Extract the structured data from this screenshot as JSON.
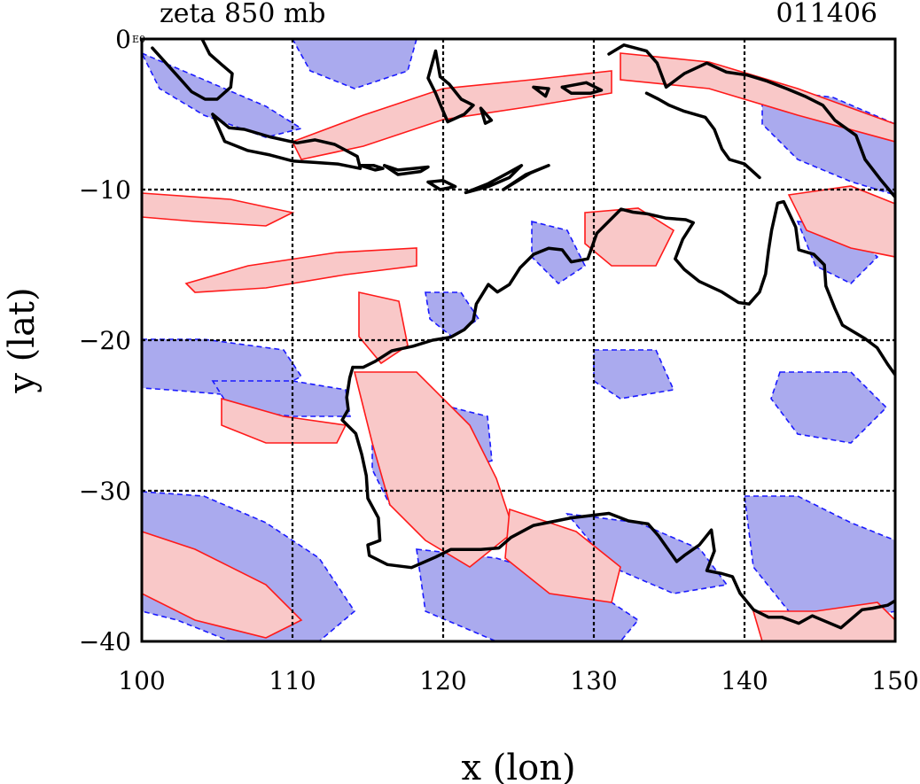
{
  "chart_data": {
    "type": "contour-map",
    "title_left": "zeta 850 mb",
    "title_right": "011406",
    "xlabel": "x (lon)",
    "ylabel": "y (lat)",
    "xlim": [
      100,
      150
    ],
    "ylim": [
      -40,
      0
    ],
    "x_ticks": [
      100,
      110,
      120,
      130,
      140,
      150
    ],
    "y_ticks": [
      0,
      -10,
      -20,
      -30,
      -40
    ],
    "x_tick_labels": [
      "100",
      "110",
      "120",
      "130",
      "140",
      "150"
    ],
    "y_tick_labels": [
      "0",
      "−10",
      "−20",
      "−30",
      "−40"
    ],
    "y_top_suffix": "E0",
    "grid": true,
    "grid_style": "dashed",
    "colors": {
      "positive_fill": "#f9c8c8",
      "positive_line": "#ff1a1a",
      "negative_fill": "#aaaaee",
      "negative_line": "#1a1aff",
      "coastline": "#000000"
    },
    "coastline": [
      [
        [
          114.0,
          -21.8
        ],
        [
          113.8,
          -22.5
        ],
        [
          113.6,
          -23.8
        ],
        [
          113.7,
          -24.6
        ],
        [
          113.3,
          -25.3
        ],
        [
          114.2,
          -26.2
        ],
        [
          114.6,
          -27.6
        ],
        [
          114.9,
          -29.0
        ],
        [
          115.0,
          -30.5
        ],
        [
          115.7,
          -31.8
        ],
        [
          115.8,
          -33.3
        ],
        [
          115.0,
          -33.6
        ],
        [
          115.1,
          -34.3
        ],
        [
          116.3,
          -34.9
        ],
        [
          117.9,
          -35.1
        ],
        [
          119.5,
          -34.4
        ],
        [
          120.5,
          -33.9
        ],
        [
          122.5,
          -33.9
        ],
        [
          123.7,
          -33.8
        ],
        [
          124.5,
          -33.1
        ],
        [
          126.0,
          -32.3
        ],
        [
          128.5,
          -31.8
        ],
        [
          131.0,
          -31.5
        ],
        [
          132.3,
          -32.0
        ],
        [
          133.6,
          -32.2
        ],
        [
          134.3,
          -33.0
        ],
        [
          135.5,
          -34.7
        ],
        [
          136.0,
          -34.3
        ],
        [
          137.0,
          -33.6
        ],
        [
          137.8,
          -32.6
        ],
        [
          138.0,
          -34.0
        ],
        [
          137.5,
          -35.3
        ],
        [
          138.5,
          -35.5
        ],
        [
          139.2,
          -35.7
        ],
        [
          139.7,
          -36.8
        ],
        [
          140.6,
          -37.9
        ],
        [
          141.6,
          -38.4
        ],
        [
          142.5,
          -38.4
        ],
        [
          143.6,
          -38.8
        ],
        [
          144.5,
          -38.3
        ],
        [
          145.2,
          -38.6
        ],
        [
          146.4,
          -39.1
        ],
        [
          147.8,
          -37.9
        ],
        [
          148.5,
          -37.8
        ],
        [
          149.5,
          -37.6
        ],
        [
          150.0,
          -37.3
        ]
      ],
      [
        [
          150.0,
          -22.3
        ],
        [
          149.5,
          -21.6
        ],
        [
          148.8,
          -20.5
        ],
        [
          148.0,
          -19.9
        ],
        [
          146.5,
          -19.0
        ],
        [
          146.0,
          -17.9
        ],
        [
          145.4,
          -16.4
        ],
        [
          145.3,
          -15.0
        ],
        [
          144.6,
          -14.3
        ],
        [
          143.6,
          -14.0
        ],
        [
          143.4,
          -12.5
        ],
        [
          142.6,
          -10.8
        ],
        [
          142.2,
          -10.9
        ],
        [
          141.8,
          -12.7
        ],
        [
          141.6,
          -14.0
        ],
        [
          141.4,
          -15.6
        ],
        [
          141.0,
          -16.8
        ],
        [
          140.3,
          -17.6
        ],
        [
          139.6,
          -17.5
        ],
        [
          138.5,
          -16.8
        ],
        [
          137.0,
          -16.1
        ],
        [
          136.0,
          -15.3
        ],
        [
          135.4,
          -14.6
        ],
        [
          135.9,
          -13.3
        ],
        [
          136.6,
          -12.2
        ],
        [
          136.1,
          -12.0
        ],
        [
          134.8,
          -11.9
        ],
        [
          133.5,
          -11.6
        ],
        [
          132.6,
          -11.5
        ],
        [
          131.8,
          -11.3
        ],
        [
          130.8,
          -12.3
        ],
        [
          130.2,
          -12.9
        ],
        [
          129.6,
          -14.6
        ],
        [
          128.5,
          -14.8
        ],
        [
          127.9,
          -14.0
        ],
        [
          127.0,
          -13.9
        ],
        [
          126.0,
          -14.3
        ],
        [
          125.1,
          -15.2
        ],
        [
          124.4,
          -16.3
        ],
        [
          123.6,
          -16.8
        ],
        [
          123.0,
          -16.3
        ],
        [
          122.2,
          -17.6
        ],
        [
          122.0,
          -18.7
        ],
        [
          121.4,
          -19.3
        ],
        [
          120.5,
          -19.8
        ],
        [
          119.3,
          -20.0
        ],
        [
          118.0,
          -20.4
        ],
        [
          116.6,
          -20.7
        ],
        [
          115.5,
          -21.4
        ],
        [
          114.7,
          -21.8
        ],
        [
          114.0,
          -21.8
        ]
      ],
      [
        [
          104.7,
          -5.0
        ],
        [
          105.8,
          -5.9
        ],
        [
          106.8,
          -6.0
        ],
        [
          108.5,
          -6.5
        ],
        [
          110.3,
          -6.9
        ],
        [
          111.5,
          -6.7
        ],
        [
          112.8,
          -7.0
        ],
        [
          114.3,
          -7.8
        ],
        [
          114.5,
          -8.6
        ],
        [
          113.0,
          -8.3
        ],
        [
          111.5,
          -8.2
        ],
        [
          110.0,
          -8.1
        ],
        [
          108.5,
          -7.7
        ],
        [
          107.0,
          -7.4
        ],
        [
          105.5,
          -6.8
        ],
        [
          104.7,
          -5.0
        ]
      ],
      [
        [
          100.7,
          -0.6
        ],
        [
          101.6,
          -1.6
        ],
        [
          102.5,
          -2.6
        ],
        [
          103.3,
          -3.5
        ],
        [
          104.2,
          -4.0
        ],
        [
          105.0,
          -4.0
        ],
        [
          105.9,
          -3.2
        ],
        [
          106.0,
          -2.3
        ],
        [
          105.3,
          -1.7
        ],
        [
          104.5,
          -1.0
        ],
        [
          104.0,
          0.0
        ]
      ],
      [
        [
          114.5,
          -8.4
        ],
        [
          115.5,
          -8.7
        ],
        [
          116.0,
          -8.6
        ],
        [
          115.4,
          -8.4
        ],
        [
          114.5,
          -8.4
        ]
      ],
      [
        [
          116.1,
          -8.4
        ],
        [
          117.0,
          -8.7
        ],
        [
          118.0,
          -8.6
        ],
        [
          119.0,
          -8.5
        ],
        [
          118.5,
          -8.8
        ],
        [
          117.0,
          -9.0
        ],
        [
          116.1,
          -8.4
        ]
      ],
      [
        [
          119.0,
          -9.5
        ],
        [
          120.0,
          -9.4
        ],
        [
          120.8,
          -9.8
        ],
        [
          119.8,
          -10.0
        ],
        [
          119.0,
          -9.5
        ]
      ],
      [
        [
          121.5,
          -10.2
        ],
        [
          123.0,
          -9.8
        ],
        [
          124.4,
          -9.2
        ],
        [
          125.2,
          -8.4
        ],
        [
          124.3,
          -8.9
        ],
        [
          123.0,
          -9.6
        ],
        [
          121.5,
          -10.2
        ]
      ],
      [
        [
          119.5,
          -0.8
        ],
        [
          119.8,
          -2.5
        ],
        [
          120.4,
          -3.0
        ],
        [
          121.2,
          -4.0
        ],
        [
          122.0,
          -4.4
        ],
        [
          121.4,
          -5.0
        ],
        [
          120.3,
          -5.5
        ],
        [
          120.0,
          -4.8
        ],
        [
          119.5,
          -3.6
        ],
        [
          119.0,
          -2.6
        ],
        [
          119.5,
          -0.8
        ]
      ],
      [
        [
          122.5,
          -4.6
        ],
        [
          123.2,
          -5.4
        ],
        [
          122.8,
          -5.6
        ],
        [
          122.5,
          -4.6
        ]
      ],
      [
        [
          126.0,
          -3.2
        ],
        [
          127.0,
          -3.3
        ],
        [
          126.8,
          -3.8
        ],
        [
          126.0,
          -3.2
        ]
      ],
      [
        [
          127.9,
          -3.2
        ],
        [
          129.5,
          -2.9
        ],
        [
          130.5,
          -3.4
        ],
        [
          129.8,
          -3.6
        ],
        [
          128.5,
          -3.6
        ],
        [
          127.9,
          -3.2
        ]
      ],
      [
        [
          131.0,
          -1.0
        ],
        [
          132.0,
          -0.4
        ],
        [
          133.5,
          -0.8
        ],
        [
          134.2,
          -1.6
        ],
        [
          134.8,
          -3.2
        ],
        [
          136.0,
          -2.3
        ],
        [
          137.5,
          -1.6
        ],
        [
          138.8,
          -2.2
        ],
        [
          140.2,
          -2.4
        ],
        [
          141.5,
          -2.8
        ],
        [
          142.8,
          -3.3
        ],
        [
          144.0,
          -3.8
        ],
        [
          145.2,
          -4.4
        ],
        [
          146.0,
          -5.4
        ],
        [
          147.4,
          -6.4
        ],
        [
          148.0,
          -8.0
        ],
        [
          149.0,
          -9.3
        ],
        [
          150.0,
          -10.5
        ]
      ],
      [
        [
          141.0,
          -9.2
        ],
        [
          140.0,
          -8.3
        ],
        [
          139.0,
          -8.0
        ],
        [
          138.5,
          -7.3
        ],
        [
          138.0,
          -6.0
        ],
        [
          137.4,
          -5.2
        ],
        [
          136.0,
          -4.8
        ],
        [
          135.0,
          -4.4
        ],
        [
          134.3,
          -4.0
        ],
        [
          133.5,
          -3.6
        ]
      ],
      [
        [
          124.0,
          -10.0
        ],
        [
          125.5,
          -9.0
        ],
        [
          127.0,
          -8.4
        ],
        [
          125.8,
          -8.9
        ],
        [
          124.0,
          -10.0
        ]
      ]
    ]
  }
}
